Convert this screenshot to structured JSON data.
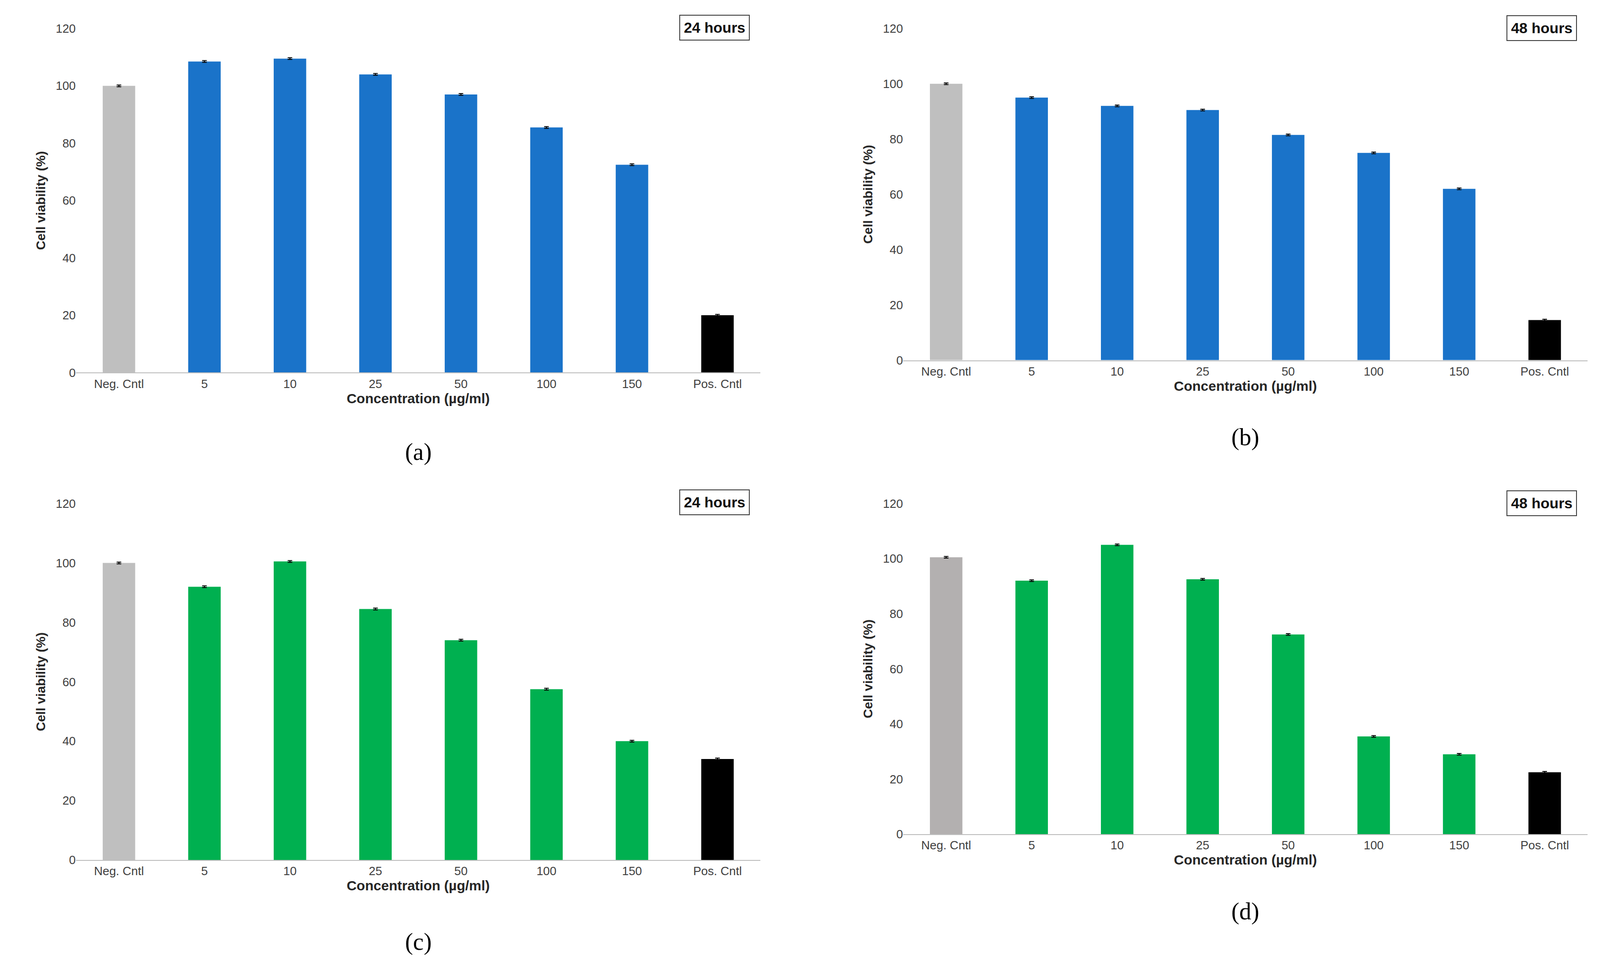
{
  "chart_data": [
    {
      "type": "bar",
      "title": "(a)",
      "annotations": [
        "24 hours"
      ],
      "x_label": "Concentration (µg/ml)",
      "y_label": "Cell viability (%)",
      "categories": [
        "Neg. Cntl",
        "5",
        "10",
        "25",
        "50",
        "100",
        "150",
        "Pos. Cntl"
      ],
      "values": [
        100,
        108.5,
        109.5,
        104,
        97,
        85.5,
        72.5,
        20
      ],
      "errors": [
        0.3,
        0.3,
        0.3,
        0.3,
        0.3,
        0.3,
        0.3,
        0.3
      ],
      "colors": [
        "#bfbfbf",
        "#1a73c9",
        "#1a73c9",
        "#1a73c9",
        "#1a73c9",
        "#1a73c9",
        "#1a73c9",
        "#000000"
      ],
      "ylim": [
        0,
        120
      ],
      "yticks": [
        0,
        20,
        40,
        60,
        80,
        100,
        120
      ],
      "grid": false
    },
    {
      "type": "bar",
      "title": "(b)",
      "annotations": [
        "48 hours"
      ],
      "x_label": "Concentration (µg/ml)",
      "y_label": "Cell viability (%)",
      "categories": [
        "Neg. Cntl",
        "5",
        "10",
        "25",
        "50",
        "100",
        "150",
        "Pos. Cntl"
      ],
      "values": [
        100,
        95,
        92,
        90.5,
        81.5,
        75,
        62,
        14.5
      ],
      "errors": [
        0.3,
        0.3,
        0.3,
        0.3,
        0.3,
        0.3,
        0.3,
        0.3
      ],
      "colors": [
        "#bfbfbf",
        "#1a73c9",
        "#1a73c9",
        "#1a73c9",
        "#1a73c9",
        "#1a73c9",
        "#1a73c9",
        "#000000"
      ],
      "ylim": [
        0,
        120
      ],
      "yticks": [
        0,
        20,
        40,
        60,
        80,
        100,
        120
      ],
      "grid": false
    },
    {
      "type": "bar",
      "title": "(c)",
      "annotations": [
        "24 hours"
      ],
      "x_label": "Concentration (µg/ml)",
      "y_label": "Cell viability (%)",
      "categories": [
        "Neg. Cntl",
        "5",
        "10",
        "25",
        "50",
        "100",
        "150",
        "Pos. Cntl"
      ],
      "values": [
        100,
        92,
        100.5,
        84.5,
        74,
        57.5,
        40,
        34
      ],
      "errors": [
        0.3,
        0.3,
        0.3,
        0.3,
        0.3,
        0.3,
        0.3,
        0.3
      ],
      "colors": [
        "#bfbfbf",
        "#00b050",
        "#00b050",
        "#00b050",
        "#00b050",
        "#00b050",
        "#00b050",
        "#000000"
      ],
      "ylim": [
        0,
        120
      ],
      "yticks": [
        0,
        20,
        40,
        60,
        80,
        100,
        120
      ],
      "grid": false
    },
    {
      "type": "bar",
      "title": "(d)",
      "annotations": [
        "48 hours"
      ],
      "x_label": "Concentration (µg/ml)",
      "y_label": "Cell viability (%)",
      "categories": [
        "Neg. Cntl",
        "5",
        "10",
        "25",
        "50",
        "100",
        "150",
        "Pos. Cntl"
      ],
      "values": [
        100.5,
        92,
        105,
        92.5,
        72.5,
        35.5,
        29,
        22.5
      ],
      "errors": [
        0.3,
        0.3,
        0.3,
        0.3,
        0.3,
        0.3,
        0.3,
        0.3
      ],
      "colors": [
        "#b3b0b0",
        "#00b050",
        "#00b050",
        "#00b050",
        "#00b050",
        "#00b050",
        "#00b050",
        "#000000"
      ],
      "ylim": [
        0,
        120
      ],
      "yticks": [
        0,
        20,
        40,
        60,
        80,
        100,
        120
      ],
      "grid": false
    }
  ]
}
